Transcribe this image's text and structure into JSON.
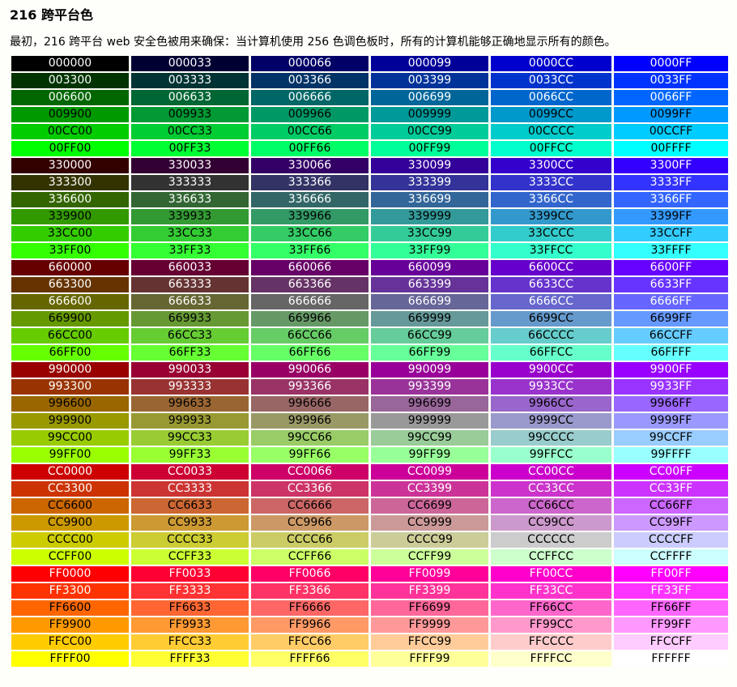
{
  "page": {
    "title": "216 跨平台色",
    "description": "最初，216 跨平台 web 安全色被用来确保：当计算机使用 256 色调色板时，所有的计算机能够正确地显示所有的颜色。"
  },
  "palette": {
    "red_steps": [
      "00",
      "33",
      "66",
      "99",
      "CC",
      "FF"
    ],
    "green_steps": [
      "00",
      "33",
      "66",
      "99",
      "CC",
      "FF"
    ],
    "blue_steps": [
      "00",
      "33",
      "66",
      "99",
      "CC",
      "FF"
    ],
    "colors": [
      "000000",
      "000033",
      "000066",
      "000099",
      "0000CC",
      "0000FF",
      "003300",
      "003333",
      "003366",
      "003399",
      "0033CC",
      "0033FF",
      "006600",
      "006633",
      "006666",
      "006699",
      "0066CC",
      "0066FF",
      "009900",
      "009933",
      "009966",
      "009999",
      "0099CC",
      "0099FF",
      "00CC00",
      "00CC33",
      "00CC66",
      "00CC99",
      "00CCCC",
      "00CCFF",
      "00FF00",
      "00FF33",
      "00FF66",
      "00FF99",
      "00FFCC",
      "00FFFF",
      "330000",
      "330033",
      "330066",
      "330099",
      "3300CC",
      "3300FF",
      "333300",
      "333333",
      "333366",
      "333399",
      "3333CC",
      "3333FF",
      "336600",
      "336633",
      "336666",
      "336699",
      "3366CC",
      "3366FF",
      "339900",
      "339933",
      "339966",
      "339999",
      "3399CC",
      "3399FF",
      "33CC00",
      "33CC33",
      "33CC66",
      "33CC99",
      "33CCCC",
      "33CCFF",
      "33FF00",
      "33FF33",
      "33FF66",
      "33FF99",
      "33FFCC",
      "33FFFF",
      "660000",
      "660033",
      "660066",
      "660099",
      "6600CC",
      "6600FF",
      "663300",
      "663333",
      "663366",
      "663399",
      "6633CC",
      "6633FF",
      "666600",
      "666633",
      "666666",
      "666699",
      "6666CC",
      "6666FF",
      "669900",
      "669933",
      "669966",
      "669999",
      "6699CC",
      "6699FF",
      "66CC00",
      "66CC33",
      "66CC66",
      "66CC99",
      "66CCCC",
      "66CCFF",
      "66FF00",
      "66FF33",
      "66FF66",
      "66FF99",
      "66FFCC",
      "66FFFF",
      "990000",
      "990033",
      "990066",
      "990099",
      "9900CC",
      "9900FF",
      "993300",
      "993333",
      "993366",
      "993399",
      "9933CC",
      "9933FF",
      "996600",
      "996633",
      "996666",
      "996699",
      "9966CC",
      "9966FF",
      "999900",
      "999933",
      "999966",
      "999999",
      "9999CC",
      "9999FF",
      "99CC00",
      "99CC33",
      "99CC66",
      "99CC99",
      "99CCCC",
      "99CCFF",
      "99FF00",
      "99FF33",
      "99FF66",
      "99FF99",
      "99FFCC",
      "99FFFF",
      "CC0000",
      "CC0033",
      "CC0066",
      "CC0099",
      "CC00CC",
      "CC00FF",
      "CC3300",
      "CC3333",
      "CC3366",
      "CC3399",
      "CC33CC",
      "CC33FF",
      "CC6600",
      "CC6633",
      "CC6666",
      "CC6699",
      "CC66CC",
      "CC66FF",
      "CC9900",
      "CC9933",
      "CC9966",
      "CC9999",
      "CC99CC",
      "CC99FF",
      "CCCC00",
      "CCCC33",
      "CCCC66",
      "CCCC99",
      "CCCCCC",
      "CCCCFF",
      "CCFF00",
      "CCFF33",
      "CCFF66",
      "CCFF99",
      "CCFFCC",
      "CCFFFF",
      "FF0000",
      "FF0033",
      "FF0066",
      "FF0099",
      "FF00CC",
      "FF00FF",
      "FF3300",
      "FF3333",
      "FF3366",
      "FF3399",
      "FF33CC",
      "FF33FF",
      "FF6600",
      "FF6633",
      "FF6666",
      "FF6699",
      "FF66CC",
      "FF66FF",
      "FF9900",
      "FF9933",
      "FF9966",
      "FF9999",
      "FF99CC",
      "FF99FF",
      "FFCC00",
      "FFCC33",
      "FFCC66",
      "FFCC99",
      "FFCCCC",
      "FFCCFF",
      "FFFF00",
      "FFFF33",
      "FFFF66",
      "FFFF99",
      "FFFFCC",
      "FFFFFF"
    ],
    "text_colors": {
      "on_dark": "#ffffff",
      "on_light": "#000000"
    }
  }
}
